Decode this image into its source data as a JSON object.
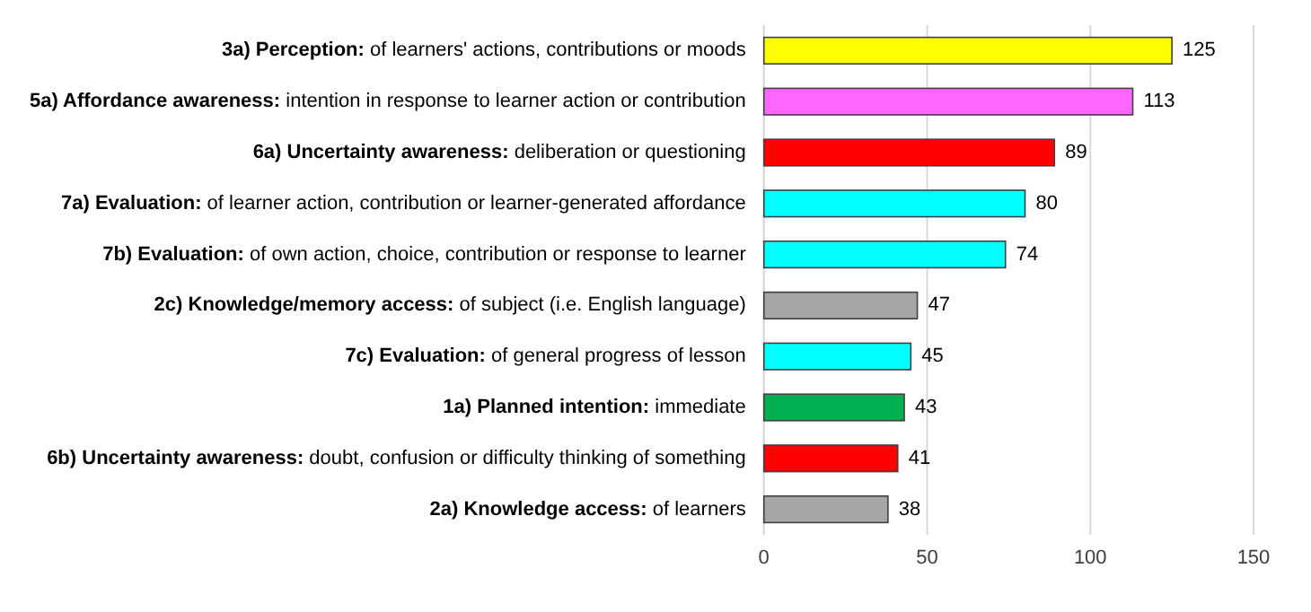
{
  "chart_data": {
    "type": "bar",
    "orientation": "horizontal",
    "categories": [
      "3a) Perception: of learners' actions, contributions or moods",
      "5a) Affordance awareness: intention in response to learner action or contribution",
      "6a) Uncertainty awareness: deliberation or questioning",
      "7a) Evaluation: of learner action, contribution or learner-generated affordance",
      "7b) Evaluation: of own action, choice, contribution or response to learner",
      "2c) Knowledge/memory access: of subject (i.e. English language)",
      "7c) Evaluation: of general progress of lesson",
      "1a) Planned intention: immediate",
      "6b) Uncertainty awareness: doubt, confusion or difficulty thinking of something",
      "2a) Knowledge access: of learners"
    ],
    "values": [
      125,
      113,
      89,
      80,
      74,
      47,
      45,
      43,
      41,
      38
    ],
    "colors": [
      "#ffff00",
      "#ff66ff",
      "#ff0000",
      "#00ffff",
      "#00ffff",
      "#a6a6a6",
      "#00ffff",
      "#00b050",
      "#ff0000",
      "#a6a6a6"
    ],
    "xlim": [
      0,
      150
    ],
    "xticks": [
      0,
      50,
      100,
      150
    ],
    "grid": "x",
    "data_labels": true
  }
}
